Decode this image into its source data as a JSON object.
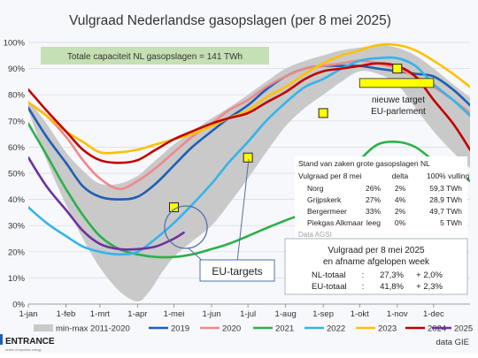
{
  "chart_data": {
    "type": "area+line",
    "title": "Vulgraad Nederlandse gasopslagen (per 8 mei 2025)",
    "x_ticks": [
      "1-jan",
      "1-feb",
      "1-mrt",
      "1-apr",
      "1-mei",
      "1-jun",
      "1-jul",
      "1-aug",
      "1-sep",
      "1-okt",
      "1-nov",
      "1-dec"
    ],
    "x_tick_days": [
      0,
      31,
      59,
      90,
      120,
      151,
      181,
      212,
      243,
      273,
      304,
      334
    ],
    "y_ticks": [
      "0%",
      "10%",
      "20%",
      "30%",
      "40%",
      "50%",
      "60%",
      "70%",
      "80%",
      "90%",
      "100%"
    ],
    "ylim": [
      0,
      100
    ],
    "capacity_note": "Totale capaciteit NL gasopslagen = 141 TWh",
    "band": {
      "name": "min-max 2011-2020",
      "color": "#c9c9c9",
      "x": [
        0,
        15,
        31,
        45,
        59,
        75,
        90,
        100,
        110,
        120,
        135,
        151,
        165,
        181,
        196,
        212,
        228,
        243,
        258,
        273,
        288,
        304,
        319,
        334,
        350,
        364
      ],
      "min": [
        74,
        55,
        38,
        25,
        14,
        5,
        1,
        5,
        12,
        18,
        24,
        30,
        38,
        48,
        58,
        68,
        75,
        80,
        85,
        89,
        88,
        84,
        75,
        66,
        58,
        52
      ],
      "max": [
        78,
        69,
        58,
        51,
        46,
        46,
        49,
        53,
        57,
        61,
        66,
        71,
        75,
        80,
        85,
        90,
        93,
        95,
        97,
        98,
        99,
        98,
        95,
        90,
        84,
        79
      ]
    },
    "series": [
      {
        "name": "2019",
        "color": "#1f5fb4",
        "x": [
          0,
          15,
          31,
          45,
          59,
          75,
          90,
          105,
          120,
          135,
          151,
          165,
          181,
          196,
          212,
          228,
          243,
          258,
          273,
          288,
          304,
          319,
          334,
          350,
          364
        ],
        "values": [
          75,
          64,
          54,
          45,
          41,
          40,
          41,
          46,
          53,
          60,
          66,
          71,
          76,
          82,
          87,
          90,
          91,
          91,
          91,
          90,
          89,
          88,
          87,
          82,
          76
        ]
      },
      {
        "name": "2020",
        "color": "#f0888a",
        "x": [
          0,
          15,
          31,
          45,
          59,
          75,
          90,
          105,
          120,
          135,
          151,
          165,
          181,
          196,
          212,
          228,
          243,
          258,
          273,
          288,
          304,
          319,
          334,
          350,
          364
        ],
        "values": [
          77,
          72,
          64,
          55,
          48,
          44,
          47,
          52,
          58,
          64,
          69,
          74,
          78,
          83,
          87,
          90,
          91,
          92,
          93,
          92,
          90,
          87,
          83,
          78,
          73
        ]
      },
      {
        "name": "2021",
        "color": "#2bb04a",
        "x": [
          0,
          15,
          31,
          45,
          59,
          75,
          90,
          105,
          120,
          135,
          151,
          165,
          181,
          196,
          212,
          228,
          243,
          258,
          273,
          288,
          304,
          319,
          334,
          350,
          364
        ],
        "values": [
          69,
          57,
          44,
          34,
          26,
          21,
          19,
          18,
          18,
          19,
          21,
          23,
          26,
          29,
          32,
          35,
          40,
          47,
          55,
          61,
          62,
          60,
          55,
          52,
          47
        ]
      },
      {
        "name": "2022",
        "color": "#35b3ea",
        "x": [
          0,
          15,
          31,
          45,
          59,
          75,
          90,
          105,
          120,
          135,
          151,
          165,
          181,
          196,
          212,
          228,
          243,
          258,
          273,
          288,
          304,
          319,
          334,
          350,
          364
        ],
        "values": [
          37,
          31,
          26,
          22,
          20,
          19,
          20,
          25,
          31,
          38,
          46,
          54,
          62,
          70,
          77,
          83,
          86,
          90,
          93,
          94,
          94,
          91,
          84,
          78,
          72
        ]
      },
      {
        "name": "2023",
        "color": "#ffc000",
        "x": [
          0,
          15,
          31,
          45,
          59,
          75,
          90,
          105,
          120,
          135,
          151,
          165,
          181,
          196,
          212,
          228,
          243,
          258,
          273,
          288,
          304,
          319,
          334,
          350,
          364
        ],
        "values": [
          77,
          72,
          66,
          62,
          58,
          58,
          59,
          61,
          63,
          65,
          68,
          71,
          74,
          79,
          83,
          88,
          92,
          95,
          97,
          99,
          99,
          97,
          93,
          88,
          83
        ]
      },
      {
        "name": "2024",
        "color": "#c00000",
        "x": [
          0,
          15,
          31,
          45,
          59,
          75,
          90,
          105,
          120,
          135,
          151,
          165,
          181,
          196,
          212,
          228,
          243,
          258,
          273,
          288,
          304,
          319,
          334,
          350,
          364
        ],
        "values": [
          82,
          74,
          66,
          59,
          55,
          54,
          55,
          59,
          63,
          66,
          69,
          71,
          73,
          77,
          81,
          86,
          89,
          90,
          91,
          92,
          91,
          87,
          78,
          69,
          59
        ]
      },
      {
        "name": "2025",
        "color": "#7030a0",
        "x": [
          0,
          15,
          31,
          45,
          59,
          75,
          90,
          105,
          120,
          128
        ],
        "values": [
          56,
          45,
          36,
          28,
          23,
          21,
          21,
          22,
          25,
          27.3
        ]
      }
    ],
    "targets": {
      "color": "#ffff00",
      "points": [
        {
          "x": 120,
          "y": 37
        },
        {
          "x": 181,
          "y": 56
        },
        {
          "x": 243,
          "y": 73
        },
        {
          "x": 304,
          "y": 90
        }
      ]
    },
    "target_bar": {
      "x_start": 273,
      "x_end": 334,
      "y": 84.5
    }
  },
  "annotations": {
    "nieuwe_target_line1": "nieuwe target",
    "nieuwe_target_line2": "EU-parlement",
    "eu_targets": "EU-targets"
  },
  "table": {
    "title": "Stand van zaken grote gasopslagen NL",
    "headers": [
      "Vulgraad per 8 mei",
      "",
      "delta",
      "100% vulling"
    ],
    "rows": [
      [
        "Norg",
        "26%",
        "2%",
        "59,3 TWh"
      ],
      [
        "Grijpskerk",
        "27%",
        "4%",
        "28,9 TWh"
      ],
      [
        "Bergermeer",
        "33%",
        "2%",
        "49,7 TWh"
      ],
      [
        "Piekgas Alkmaar",
        "leeg",
        "0%",
        "5 TWh"
      ]
    ],
    "source": "Data AGSI"
  },
  "summary": {
    "line1": "Vulgraad per 8 mei 2025",
    "line2": "en afname afgelopen week",
    "rows": [
      [
        "NL-totaal",
        ":",
        "27,3%",
        "+ 2,0%"
      ],
      [
        "EU-totaal",
        ":",
        "41,8%",
        "+ 2,3%"
      ]
    ]
  },
  "legend": [
    "min-max 2011-2020",
    "2019",
    "2020",
    "2021",
    "2022",
    "2023",
    "2024",
    "2025"
  ],
  "footer": {
    "brand": "ENTRANCE",
    "brand_sub": "centre of expertise energy",
    "source": "data GIE"
  }
}
